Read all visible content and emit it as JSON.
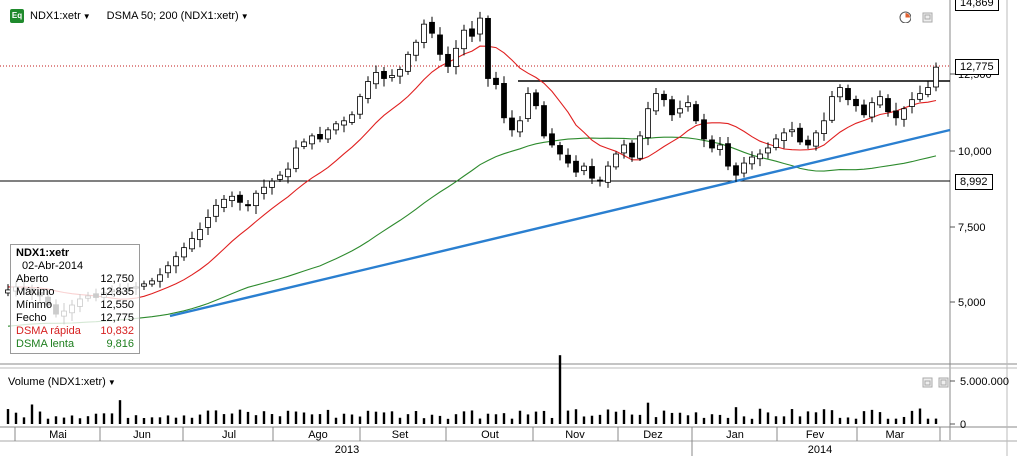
{
  "header": {
    "symbol_label": "NDX1:xetr",
    "indicator_label": "DSMA 50; 200 (NDX1:xetr)",
    "icon": "equity-icon",
    "icon_text": "Eq"
  },
  "legend": {
    "title": "NDX1:xetr",
    "date": "02-Abr-2014",
    "rows": [
      {
        "label": "Aberto",
        "value": "12,750"
      },
      {
        "label": "Máximo",
        "value": "12,835"
      },
      {
        "label": "Mínimo",
        "value": "12,550"
      },
      {
        "label": "Fecho",
        "value": "12,775"
      },
      {
        "label": "DSMA rápida",
        "value": "10,832"
      },
      {
        "label": "DSMA lenta",
        "value": "9,816"
      }
    ]
  },
  "price_axis": {
    "top_label": "14,869",
    "last_price": "12,775",
    "level_label": "8,992",
    "ticks": [
      "12,500",
      "10,000",
      "7,500",
      "5,000"
    ]
  },
  "volume": {
    "label": "Volume (NDX1:xetr)",
    "ticks": [
      "5.000.000",
      "0"
    ]
  },
  "time_axis": {
    "months": [
      "Mai",
      "Jun",
      "Jul",
      "Ago",
      "Set",
      "Out",
      "Nov",
      "Dez",
      "Jan",
      "Fev",
      "Mar"
    ],
    "years": [
      "2013",
      "2014"
    ]
  },
  "colors": {
    "fast_sma": "#e02020",
    "slow_sma": "#2e8b2e",
    "trendline": "#2a7fd0",
    "last_price_line": "#c01818"
  },
  "chart_data": {
    "type": "candlestick",
    "ylim": [
      3000,
      15000
    ],
    "horizontal_levels": [
      12000,
      8992
    ],
    "last_price": 12775,
    "series": [
      {
        "name": "DSMA rápida",
        "last": 10832
      },
      {
        "name": "DSMA lenta",
        "last": 9816
      }
    ],
    "closes": [
      5400,
      5500,
      5450,
      5300,
      5200,
      4900,
      4600,
      4700,
      4900,
      5100,
      5200,
      5150,
      5300,
      5400,
      5350,
      5450,
      5500,
      5600,
      5700,
      5900,
      6200,
      6500,
      6800,
      7100,
      7400,
      7800,
      8200,
      8400,
      8500,
      8300,
      8200,
      8600,
      8800,
      9000,
      9200,
      9400,
      10100,
      10300,
      10500,
      10400,
      10700,
      10900,
      11000,
      11200,
      11800,
      12300,
      12600,
      12400,
      12500,
      12700,
      13200,
      13600,
      14200,
      13900,
      13200,
      12800,
      13400,
      14000,
      13800,
      14400,
      12400,
      12200,
      11100,
      10700,
      11000,
      11900,
      11500,
      10500,
      10200,
      9900,
      9600,
      9300,
      9500,
      9100,
      9000,
      9500,
      9900,
      10200,
      9800,
      10500,
      11400,
      11900,
      11700,
      11200,
      11400,
      11600,
      11000,
      10400,
      10100,
      10200,
      9500,
      9200,
      9600,
      9800,
      9900,
      10100,
      10400,
      10600,
      10700,
      10300,
      10200,
      10600,
      11000,
      11800,
      12100,
      11700,
      11500,
      11200,
      11600,
      11800,
      11300,
      11100,
      11400,
      11700,
      11900,
      12100,
      12775
    ],
    "volume_scale": [
      0,
      5000000
    ]
  }
}
